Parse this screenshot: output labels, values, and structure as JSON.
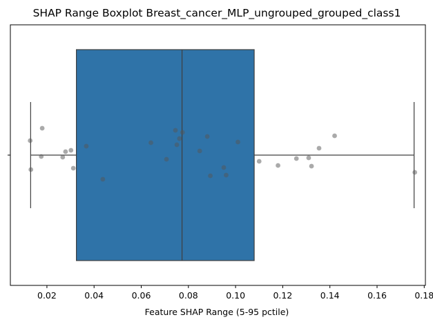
{
  "chart_data": {
    "type": "boxplot",
    "title": "SHAP Range Boxplot Breast_cancer_MLP_ungrouped_grouped_class1",
    "xlabel": "Feature SHAP Range (5-95 pctile)",
    "ylabel": "",
    "xlim": [
      0.0045,
      0.1805
    ],
    "xticks": [
      0.02,
      0.04,
      0.06,
      0.08,
      0.1,
      0.12,
      0.14,
      0.16,
      0.18
    ],
    "xtick_labels": [
      "0.02",
      "0.04",
      "0.06",
      "0.08",
      "0.10",
      "0.12",
      "0.14",
      "0.16",
      "0.18"
    ],
    "ytick_labels": [
      ""
    ],
    "grid": false,
    "box": {
      "whisker_low": 0.0131,
      "q1": 0.0325,
      "median": 0.0773,
      "q3": 0.1079,
      "whisker_high": 0.1757,
      "color": "#2f73a8"
    },
    "points": [
      {
        "x": 0.0129,
        "y": 0.21
      },
      {
        "x": 0.0132,
        "y": -0.21
      },
      {
        "x": 0.0176,
        "y": -0.02
      },
      {
        "x": 0.018,
        "y": 0.39
      },
      {
        "x": 0.0267,
        "y": -0.03
      },
      {
        "x": 0.0279,
        "y": 0.05
      },
      {
        "x": 0.0302,
        "y": 0.07
      },
      {
        "x": 0.0312,
        "y": -0.19
      },
      {
        "x": 0.0367,
        "y": 0.13
      },
      {
        "x": 0.0437,
        "y": -0.35
      },
      {
        "x": 0.0641,
        "y": 0.18
      },
      {
        "x": 0.0707,
        "y": -0.06
      },
      {
        "x": 0.0745,
        "y": 0.36
      },
      {
        "x": 0.0751,
        "y": 0.15
      },
      {
        "x": 0.0762,
        "y": 0.24
      },
      {
        "x": 0.0775,
        "y": 0.33
      },
      {
        "x": 0.0848,
        "y": 0.06
      },
      {
        "x": 0.088,
        "y": 0.27
      },
      {
        "x": 0.0893,
        "y": -0.3
      },
      {
        "x": 0.095,
        "y": -0.18
      },
      {
        "x": 0.096,
        "y": -0.29
      },
      {
        "x": 0.101,
        "y": 0.19
      },
      {
        "x": 0.11,
        "y": -0.09
      },
      {
        "x": 0.118,
        "y": -0.15
      },
      {
        "x": 0.1258,
        "y": -0.05
      },
      {
        "x": 0.131,
        "y": -0.04
      },
      {
        "x": 0.1322,
        "y": -0.16
      },
      {
        "x": 0.1354,
        "y": 0.1
      },
      {
        "x": 0.142,
        "y": 0.28
      },
      {
        "x": 0.176,
        "y": -0.25
      }
    ],
    "point_color": "#555555"
  }
}
